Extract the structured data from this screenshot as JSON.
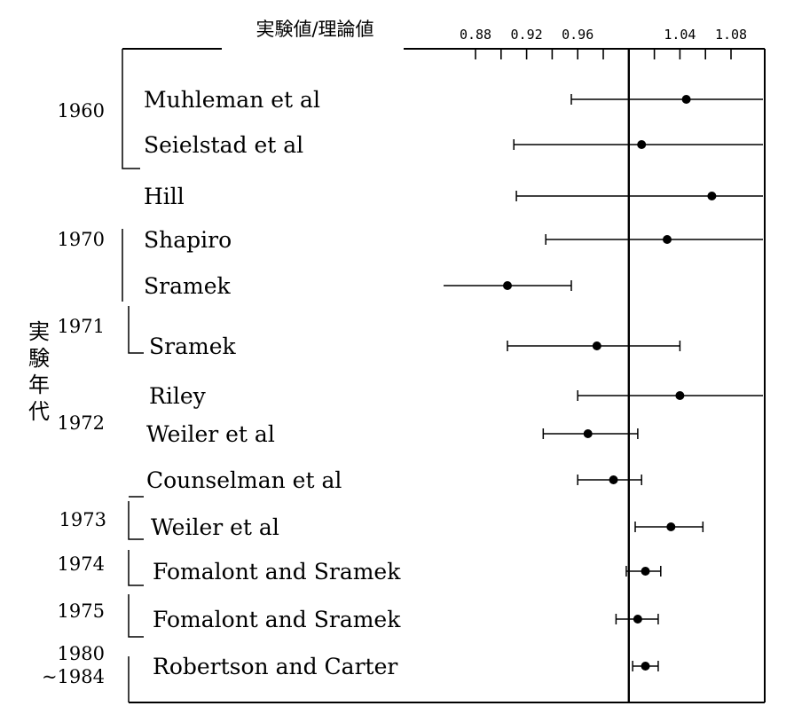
{
  "chart_data": {
    "type": "scatter",
    "title": "実験値/理論値",
    "ylabel": "実験年代",
    "xlabel": "",
    "x_tick_labels": [
      "0.88",
      "0.92",
      "0.96",
      "1.04",
      "1.08"
    ],
    "xlim": [
      0.855,
      1.105
    ],
    "reference_line": 1.0,
    "grid": false,
    "measurements": [
      {
        "label": "Muhleman et al",
        "value": 1.045,
        "low": 0.955,
        "high": 1.105
      },
      {
        "label": "Seielstad et al",
        "value": 1.01,
        "low": 0.91,
        "high": 1.105
      },
      {
        "label": "Hill",
        "value": 1.065,
        "low": 0.912,
        "high": 1.105
      },
      {
        "label": "Shapiro",
        "value": 1.03,
        "low": 0.935,
        "high": 1.105
      },
      {
        "label": "Sramek",
        "value": 0.905,
        "low": 0.855,
        "high": 0.955
      },
      {
        "label": "Sramek",
        "value": 0.975,
        "low": 0.905,
        "high": 1.04
      },
      {
        "label": "Riley",
        "value": 1.04,
        "low": 0.96,
        "high": 1.105
      },
      {
        "label": "Weiler et al",
        "value": 0.968,
        "low": 0.933,
        "high": 1.007
      },
      {
        "label": "Counselman et al",
        "value": 0.988,
        "low": 0.96,
        "high": 1.01
      },
      {
        "label": "Weiler et al",
        "value": 1.033,
        "low": 1.005,
        "high": 1.058
      },
      {
        "label": "Fomalont and Sramek",
        "value": 1.013,
        "low": 0.998,
        "high": 1.025
      },
      {
        "label": "Fomalont and Sramek",
        "value": 1.007,
        "low": 0.99,
        "high": 1.023
      },
      {
        "label": "Robertson and Carter",
        "value": 1.013,
        "low": 1.003,
        "high": 1.023
      }
    ],
    "year_labels": [
      "1960",
      "1970",
      "1971",
      "1972",
      "1973",
      "1974",
      "1975",
      "1980",
      "~1984"
    ]
  }
}
